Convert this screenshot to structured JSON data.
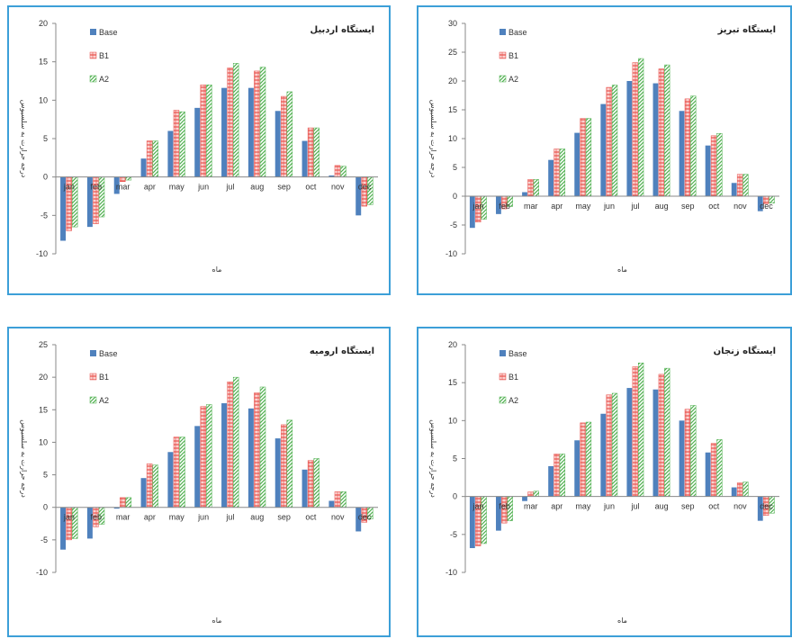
{
  "chart_data": [
    {
      "type": "bar",
      "title": "ایستگاه اردبیل",
      "xlabel": "ماه",
      "ylabel": "درجه حرارت به سلسیوس",
      "ylim": [
        -10,
        20
      ],
      "yticks": [
        -10,
        -5,
        0,
        5,
        10,
        15,
        20
      ],
      "categories": [
        "jan",
        "feb",
        "mar",
        "apr",
        "may",
        "jun",
        "jul",
        "aug",
        "sep",
        "oct",
        "nov",
        "dec"
      ],
      "legend_position": "top-left",
      "series": [
        {
          "name": "Base",
          "color": "#4f81bd",
          "pattern": "solid",
          "values": [
            -8.3,
            -6.5,
            -2.2,
            2.4,
            6.0,
            9.0,
            11.6,
            11.6,
            8.6,
            4.7,
            0.2,
            -5.0
          ]
        },
        {
          "name": "B1",
          "color": "#e8514c",
          "pattern": "hatch",
          "values": [
            -7.0,
            -6.1,
            -0.6,
            4.7,
            8.7,
            12.0,
            14.2,
            13.8,
            10.5,
            6.4,
            1.5,
            -3.8
          ]
        },
        {
          "name": "A2",
          "color": "#4fb04f",
          "pattern": "diagonal",
          "values": [
            -6.5,
            -5.2,
            -0.4,
            4.7,
            8.5,
            12.0,
            14.8,
            14.3,
            11.1,
            6.4,
            1.4,
            -3.6
          ]
        }
      ]
    },
    {
      "type": "bar",
      "title": "ایستگاه تبریز",
      "xlabel": "ماه",
      "ylabel": "درجه حرارت به سلسیوس",
      "ylim": [
        -10,
        30
      ],
      "yticks": [
        -10,
        -5,
        0,
        5,
        10,
        15,
        20,
        25,
        30
      ],
      "categories": [
        "jan",
        "feb",
        "mar",
        "apr",
        "may",
        "jun",
        "jul",
        "aug",
        "sep",
        "oct",
        "nov",
        "dec"
      ],
      "legend_position": "top-left",
      "series": [
        {
          "name": "Base",
          "color": "#4f81bd",
          "pattern": "solid",
          "values": [
            -5.5,
            -3.1,
            0.7,
            6.3,
            11.0,
            16.0,
            20.0,
            19.6,
            14.8,
            8.8,
            2.3,
            -2.6
          ]
        },
        {
          "name": "B1",
          "color": "#e8514c",
          "pattern": "hatch",
          "values": [
            -4.5,
            -2.2,
            2.9,
            8.2,
            13.5,
            18.9,
            23.2,
            22.1,
            16.9,
            10.5,
            3.8,
            -1.3
          ]
        },
        {
          "name": "A2",
          "color": "#4fb04f",
          "pattern": "diagonal",
          "values": [
            -4.0,
            -1.8,
            2.9,
            8.2,
            13.5,
            19.3,
            23.9,
            22.8,
            17.4,
            10.9,
            3.8,
            -1.2
          ]
        }
      ]
    },
    {
      "type": "bar",
      "title": "ایستگاه ارومیه",
      "xlabel": "ماه",
      "ylabel": "درجه حرارت به سلسیوس",
      "ylim": [
        -10,
        25
      ],
      "yticks": [
        -10,
        -5,
        0,
        5,
        10,
        15,
        20,
        25
      ],
      "categories": [
        "jan",
        "feb",
        "mar",
        "apr",
        "may",
        "jun",
        "jul",
        "aug",
        "sep",
        "oct",
        "nov",
        "dec"
      ],
      "legend_position": "top-left",
      "series": [
        {
          "name": "Base",
          "color": "#4f81bd",
          "pattern": "solid",
          "values": [
            -6.5,
            -4.8,
            -0.2,
            4.5,
            8.5,
            12.5,
            16.0,
            15.2,
            10.6,
            5.8,
            1.0,
            -3.7
          ]
        },
        {
          "name": "B1",
          "color": "#e8514c",
          "pattern": "hatch",
          "values": [
            -5.0,
            -3.0,
            1.5,
            6.7,
            10.8,
            15.5,
            19.3,
            17.6,
            12.7,
            7.2,
            2.4,
            -2.3
          ]
        },
        {
          "name": "A2",
          "color": "#4fb04f",
          "pattern": "diagonal",
          "values": [
            -4.8,
            -2.6,
            1.5,
            6.5,
            10.8,
            15.8,
            20.0,
            18.5,
            13.4,
            7.5,
            2.4,
            -1.8
          ]
        }
      ]
    },
    {
      "type": "bar",
      "title": "ایستگاه زنجان",
      "xlabel": "ماه",
      "ylabel": "درجه حرارت به سلسیوس",
      "ylim": [
        -10,
        20
      ],
      "yticks": [
        -10,
        -5,
        0,
        5,
        10,
        15,
        20
      ],
      "categories": [
        "jan",
        "feb",
        "mar",
        "apr",
        "may",
        "jun",
        "jul",
        "aug",
        "sep",
        "oct",
        "nov",
        "dec"
      ],
      "legend_position": "top-left",
      "series": [
        {
          "name": "Base",
          "color": "#4f81bd",
          "pattern": "solid",
          "values": [
            -6.8,
            -4.5,
            -0.6,
            4.0,
            7.4,
            10.9,
            14.3,
            14.1,
            10.0,
            5.8,
            1.2,
            -3.2
          ]
        },
        {
          "name": "B1",
          "color": "#e8514c",
          "pattern": "hatch",
          "values": [
            -6.5,
            -3.5,
            0.6,
            5.6,
            9.7,
            13.4,
            17.1,
            16.1,
            11.5,
            7.0,
            1.8,
            -2.5
          ]
        },
        {
          "name": "A2",
          "color": "#4fb04f",
          "pattern": "diagonal",
          "values": [
            -6.2,
            -3.2,
            0.7,
            5.6,
            9.8,
            13.6,
            17.6,
            16.9,
            12.0,
            7.5,
            1.9,
            -2.2
          ]
        }
      ]
    }
  ]
}
